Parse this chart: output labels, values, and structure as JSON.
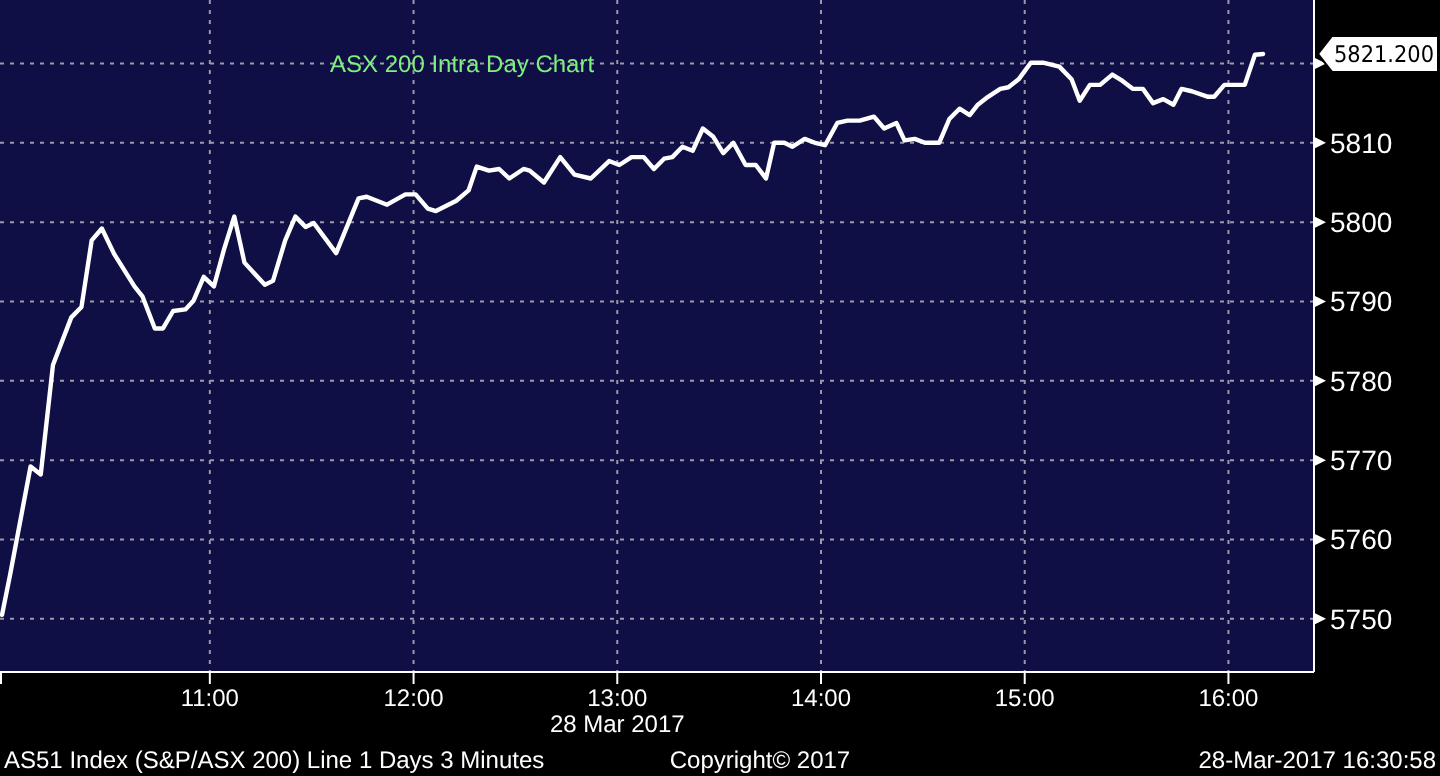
{
  "chart_data": {
    "type": "line",
    "title": "ASX 200 Intra Day Chart",
    "xlabel": "28 Mar 2017",
    "x": [
      9.98,
      10.02,
      10.12,
      10.17,
      10.23,
      10.32,
      10.37,
      10.42,
      10.47,
      10.53,
      10.63,
      10.67,
      10.73,
      10.77,
      10.82,
      10.88,
      10.92,
      10.97,
      11.02,
      11.07,
      11.12,
      11.17,
      11.27,
      11.31,
      11.37,
      11.42,
      11.47,
      11.51,
      11.62,
      11.73,
      11.77,
      11.87,
      11.96,
      12.01,
      12.07,
      12.11,
      12.21,
      12.27,
      12.31,
      12.37,
      12.42,
      12.47,
      12.54,
      12.57,
      12.64,
      12.72,
      12.79,
      12.87,
      12.96,
      13.01,
      13.07,
      13.13,
      13.18,
      13.23,
      13.27,
      13.32,
      13.37,
      13.42,
      13.47,
      13.52,
      13.57,
      13.63,
      13.68,
      13.73,
      13.77,
      13.82,
      13.86,
      13.92,
      13.97,
      14.02,
      14.08,
      14.13,
      14.19,
      14.26,
      14.31,
      14.37,
      14.41,
      14.46,
      14.51,
      14.58,
      14.63,
      14.68,
      14.73,
      14.77,
      14.82,
      14.88,
      14.92,
      14.97,
      15.03,
      15.09,
      15.17,
      15.23,
      15.27,
      15.32,
      15.37,
      15.43,
      15.48,
      15.53,
      15.58,
      15.63,
      15.68,
      15.73,
      15.77,
      15.82,
      15.9,
      15.93,
      15.98,
      16.08,
      16.13,
      16.17
    ],
    "series": [
      {
        "color": "#ffffff",
        "values": [
          5750.5,
          5755.6,
          5769.2,
          5768.2,
          5782,
          5788,
          5789.3,
          5797.7,
          5799.2,
          5796,
          5791.9,
          5790.6,
          5786.6,
          5786.6,
          5788.8,
          5789,
          5790.1,
          5793.1,
          5791.9,
          5796.6,
          5800.7,
          5794.9,
          5792.1,
          5792.6,
          5797.7,
          5800.7,
          5799.4,
          5799.9,
          5796.1,
          5803,
          5803.2,
          5802.2,
          5803.5,
          5803.5,
          5801.7,
          5801.4,
          5802.7,
          5804,
          5807,
          5806.5,
          5806.7,
          5805.5,
          5806.7,
          5806.5,
          5805,
          5808.2,
          5806,
          5805.5,
          5807.7,
          5807.2,
          5808.2,
          5808.2,
          5806.7,
          5808,
          5808.2,
          5809.5,
          5809,
          5811.8,
          5810.8,
          5808.7,
          5810,
          5807.2,
          5807.2,
          5805.5,
          5810,
          5810,
          5809.5,
          5810.5,
          5810,
          5809.7,
          5812.5,
          5812.8,
          5812.8,
          5813.3,
          5811.8,
          5812.5,
          5810.3,
          5810.5,
          5810,
          5810,
          5813,
          5814.3,
          5813.5,
          5814.8,
          5815.8,
          5816.8,
          5817,
          5818,
          5820.1,
          5820.1,
          5819.6,
          5818,
          5815.3,
          5817.3,
          5817.3,
          5818.6,
          5817.8,
          5816.8,
          5816.8,
          5815,
          5815.5,
          5814.8,
          5816.8,
          5816.5,
          5815.8,
          5815.8,
          5817.3,
          5817.3,
          5821.1,
          5821.2
        ]
      }
    ],
    "xlim": [
      9.97,
      16.42
    ],
    "ylim": [
      5743.3,
      5828
    ],
    "xticks": [
      {
        "value": 11,
        "label": "11:00"
      },
      {
        "value": 12,
        "label": "12:00"
      },
      {
        "value": 13,
        "label": "13:00"
      },
      {
        "value": 14,
        "label": "14:00"
      },
      {
        "value": 15,
        "label": "15:00"
      },
      {
        "value": 16,
        "label": "16:00"
      }
    ],
    "yticks": [
      5750,
      5760,
      5770,
      5780,
      5790,
      5800,
      5810,
      {
        "value": 5820,
        "label": null
      }
    ],
    "grid": true,
    "line_style": "solid",
    "marker": "none",
    "annotations": [
      "5821.200",
      "AS51 Index (S&P/ASX 200) Line 1 Days 3 Minutes",
      "Copyright© 2017",
      "28-Mar-2017 16:30:58"
    ]
  }
}
